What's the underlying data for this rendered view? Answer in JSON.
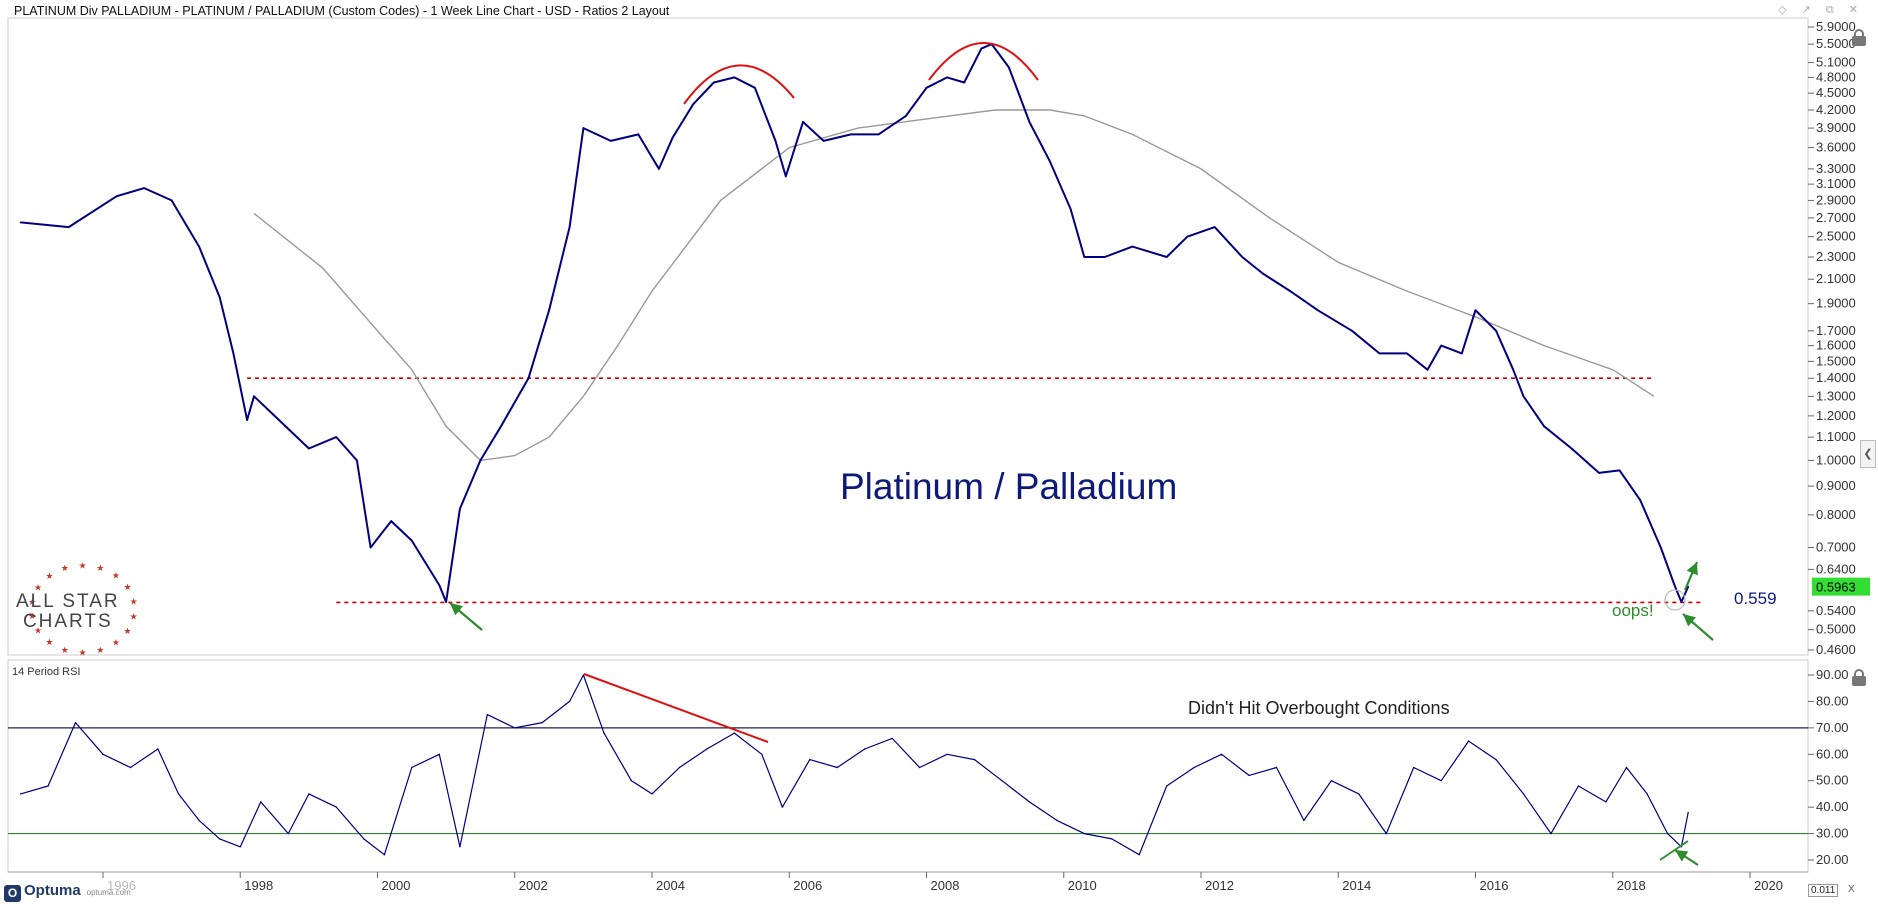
{
  "window": {
    "title": "PLATINUM Div PALLADIUM - PLATINUM / PALLADIUM (Custom Codes) - 1 Week Line Chart - USD - Ratios 2 Layout",
    "controls": "◇ ↗ ⧉ ✕",
    "zoom_value": "0.011",
    "zoom_close": "X"
  },
  "branding": {
    "allstar_line1": "ALL STAR",
    "allstar_line2": "CHARTS",
    "optuma_name": "Optuma",
    "optuma_site": "optuma.com",
    "optuma_badge": "O"
  },
  "annotations": {
    "main_label": "Platinum / Palladium",
    "support_value": "0.559",
    "oops": "oops!",
    "rsi_note": "Didn't Hit Overbought Conditions",
    "price_tag": "0.5963"
  },
  "colors": {
    "price_line": "#000080",
    "moving_average": "#999999",
    "support_dotted": "#cc0000",
    "arc_and_trend": "#dd1111",
    "arrows": "#2e8b2e",
    "price_tag_bg": "#33dd33",
    "rsi_upper": "#222244",
    "rsi_lower": "#2a8a2a"
  },
  "chart_data": [
    {
      "type": "line",
      "title": "",
      "y_scale": "log",
      "y_ticks": [
        "5.9000",
        "5.5000",
        "5.1000",
        "4.8000",
        "4.5000",
        "4.2000",
        "3.9000",
        "3.6000",
        "3.3000",
        "3.1000",
        "2.9000",
        "2.7000",
        "2.5000",
        "2.3000",
        "2.1000",
        "1.9000",
        "1.7000",
        "1.6000",
        "1.5000",
        "1.4000",
        "1.3000",
        "1.2000",
        "1.1000",
        "1.0000",
        "0.9000",
        "0.8000",
        "0.7000",
        "0.6400",
        "0.5963",
        "0.5400",
        "0.5000",
        "0.4600"
      ],
      "x_ticks": [
        "1996",
        "1998",
        "2000",
        "2002",
        "2004",
        "2006",
        "2008",
        "2010",
        "2012",
        "2014",
        "2016",
        "2018",
        "2020"
      ],
      "ylim": [
        0.44,
        6.0
      ],
      "series": [
        {
          "name": "PLATINUM / PALLADIUM",
          "x": [
            1994.8,
            1995.5,
            1996.2,
            1996.6,
            1997.0,
            1997.4,
            1997.7,
            1997.9,
            1998.1,
            1998.2,
            1998.5,
            1999.0,
            1999.4,
            1999.7,
            1999.9,
            2000.2,
            2000.5,
            2000.9,
            2001.0,
            2001.2,
            2001.5,
            2001.8,
            2002.2,
            2002.5,
            2002.8,
            2003.0,
            2003.4,
            2003.8,
            2004.1,
            2004.3,
            2004.6,
            2004.9,
            2005.2,
            2005.5,
            2005.8,
            2005.95,
            2006.2,
            2006.5,
            2006.9,
            2007.3,
            2007.7,
            2008.0,
            2008.3,
            2008.55,
            2008.8,
            2008.95,
            2009.2,
            2009.5,
            2009.8,
            2010.1,
            2010.3,
            2010.6,
            2011.0,
            2011.5,
            2011.8,
            2012.2,
            2012.6,
            2012.9,
            2013.3,
            2013.7,
            2014.2,
            2014.6,
            2015.0,
            2015.3,
            2015.5,
            2015.8,
            2016.0,
            2016.3,
            2016.55,
            2016.7,
            2017.0,
            2017.4,
            2017.8,
            2018.1,
            2018.4,
            2018.7,
            2018.9,
            2019.0,
            2019.1
          ],
          "y": [
            2.65,
            2.6,
            2.95,
            3.05,
            2.9,
            2.4,
            1.95,
            1.55,
            1.18,
            1.3,
            1.2,
            1.05,
            1.1,
            1.0,
            0.7,
            0.78,
            0.72,
            0.6,
            0.56,
            0.82,
            1.0,
            1.15,
            1.4,
            1.85,
            2.6,
            3.9,
            3.7,
            3.8,
            3.3,
            3.75,
            4.3,
            4.7,
            4.8,
            4.6,
            3.7,
            3.2,
            4.0,
            3.7,
            3.8,
            3.8,
            4.1,
            4.6,
            4.8,
            4.7,
            5.4,
            5.5,
            5.0,
            4.0,
            3.4,
            2.8,
            2.3,
            2.3,
            2.4,
            2.3,
            2.5,
            2.6,
            2.3,
            2.15,
            2.0,
            1.85,
            1.7,
            1.55,
            1.55,
            1.45,
            1.6,
            1.55,
            1.85,
            1.7,
            1.45,
            1.3,
            1.15,
            1.05,
            0.95,
            0.96,
            0.85,
            0.7,
            0.6,
            0.56,
            0.5963
          ]
        },
        {
          "name": "Moving Average",
          "x": [
            1998.2,
            1999.2,
            2000.0,
            2000.5,
            2001.0,
            2001.5,
            2002.0,
            2002.5,
            2003.0,
            2003.5,
            2004.0,
            2005.0,
            2006.0,
            2007.0,
            2008.0,
            2009.0,
            2009.8,
            2010.3,
            2011.0,
            2012.0,
            2013.0,
            2014.0,
            2015.0,
            2016.0,
            2017.0,
            2018.0,
            2018.6
          ],
          "y": [
            2.75,
            2.2,
            1.7,
            1.45,
            1.15,
            1.0,
            1.02,
            1.1,
            1.3,
            1.6,
            2.0,
            2.9,
            3.6,
            3.9,
            4.05,
            4.2,
            4.2,
            4.1,
            3.8,
            3.3,
            2.7,
            2.25,
            2.0,
            1.8,
            1.6,
            1.45,
            1.3
          ]
        }
      ],
      "reference_lines": [
        1.4,
        0.559
      ]
    },
    {
      "type": "line",
      "title": "14 Period RSI",
      "y_ticks": [
        "90.00",
        "80.00",
        "70.00",
        "60.00",
        "50.00",
        "40.00",
        "30.00",
        "20.00"
      ],
      "ylim": [
        15,
        95
      ],
      "reference_lines": [
        70,
        30
      ],
      "series": [
        {
          "name": "14 Period RSI",
          "x": [
            1994.8,
            1995.2,
            1995.6,
            1996.0,
            1996.4,
            1996.8,
            1997.1,
            1997.4,
            1997.7,
            1998.0,
            1998.3,
            1998.7,
            1999.0,
            1999.4,
            1999.8,
            2000.1,
            2000.5,
            2000.9,
            2001.2,
            2001.6,
            2002.0,
            2002.4,
            2002.8,
            2003.0,
            2003.3,
            2003.7,
            2004.0,
            2004.4,
            2004.8,
            2005.2,
            2005.6,
            2005.9,
            2006.3,
            2006.7,
            2007.1,
            2007.5,
            2007.9,
            2008.3,
            2008.7,
            2009.1,
            2009.5,
            2009.9,
            2010.3,
            2010.7,
            2011.1,
            2011.5,
            2011.9,
            2012.3,
            2012.7,
            2013.1,
            2013.5,
            2013.9,
            2014.3,
            2014.7,
            2015.1,
            2015.5,
            2015.9,
            2016.3,
            2016.7,
            2017.1,
            2017.5,
            2017.9,
            2018.2,
            2018.5,
            2018.8,
            2019.0,
            2019.1
          ],
          "y": [
            45,
            48,
            72,
            60,
            55,
            62,
            45,
            35,
            28,
            25,
            42,
            30,
            45,
            40,
            28,
            22,
            55,
            60,
            25,
            75,
            70,
            72,
            80,
            90,
            68,
            50,
            45,
            55,
            62,
            68,
            60,
            40,
            58,
            55,
            62,
            66,
            55,
            60,
            58,
            50,
            42,
            35,
            30,
            28,
            22,
            48,
            55,
            60,
            52,
            55,
            35,
            50,
            45,
            30,
            55,
            50,
            65,
            58,
            45,
            30,
            48,
            42,
            55,
            45,
            30,
            25,
            38
          ]
        }
      ]
    }
  ]
}
